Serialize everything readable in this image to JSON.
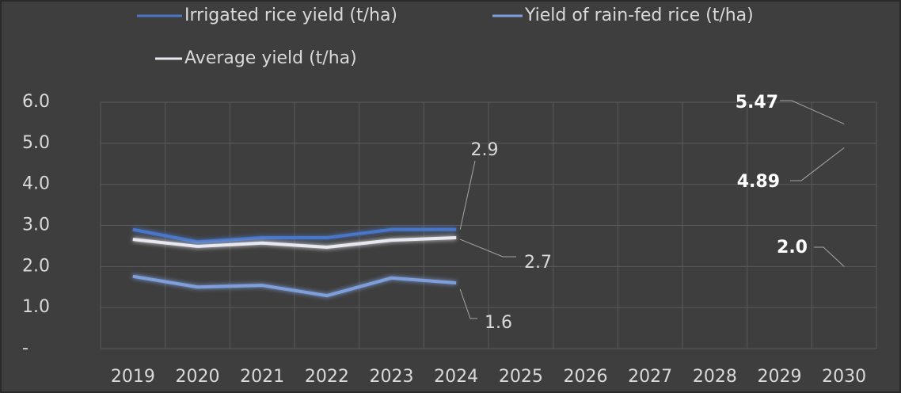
{
  "chart_data": {
    "type": "line",
    "categories": [
      "2019",
      "2020",
      "2021",
      "2022",
      "2023",
      "2024",
      "2025",
      "2026",
      "2027",
      "2028",
      "2029",
      "2030"
    ],
    "series": [
      {
        "name": "Irrigated rice yield (t/ha)",
        "color": "#4a76c8",
        "values": [
          2.9,
          2.6,
          2.7,
          2.7,
          2.9,
          2.9,
          null,
          null,
          null,
          null,
          null,
          5.47
        ],
        "value_labels": [
          null,
          null,
          null,
          null,
          null,
          "2.9",
          null,
          null,
          null,
          null,
          null,
          "5.47"
        ]
      },
      {
        "name": "Yield of rain-fed rice (t/ha)",
        "color": "#7f9fdc",
        "values": [
          1.76,
          1.5,
          1.54,
          1.29,
          1.72,
          1.6,
          null,
          null,
          null,
          null,
          null,
          2.0
        ],
        "value_labels": [
          null,
          null,
          null,
          null,
          null,
          "1.6",
          null,
          null,
          null,
          null,
          null,
          "2.0"
        ]
      },
      {
        "name": "Average yield (t/ha)",
        "color": "#e8e8f0",
        "values": [
          2.66,
          2.49,
          2.57,
          2.47,
          2.64,
          2.7,
          null,
          null,
          null,
          null,
          null,
          4.89
        ],
        "value_labels": [
          null,
          null,
          null,
          null,
          null,
          "2.7",
          null,
          null,
          null,
          null,
          null,
          "4.89"
        ]
      }
    ],
    "ylim": [
      0,
      6
    ],
    "yticks": [
      {
        "value": 0,
        "label": "-"
      },
      {
        "value": 1,
        "label": "1.0"
      },
      {
        "value": 2,
        "label": "2.0"
      },
      {
        "value": 3,
        "label": "3.0"
      },
      {
        "value": 4,
        "label": "4.0"
      },
      {
        "value": 5,
        "label": "5.0"
      },
      {
        "value": 6,
        "label": "6.0"
      }
    ],
    "grid": true,
    "legend": "top"
  }
}
